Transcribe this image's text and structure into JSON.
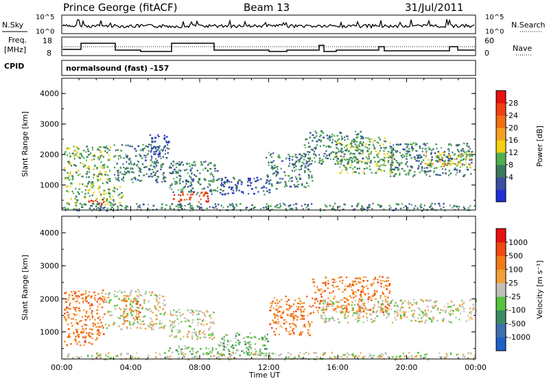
{
  "header": {
    "station": "Prince George (fitACF)",
    "beam": "Beam 13",
    "date": "31/Jul/2011"
  },
  "strip_labels": {
    "nsky": "N.Sky",
    "nsky_ticks": [
      "10^5",
      "10^0"
    ],
    "nsearch": "N.Search",
    "nsearch_ticks": [
      "10^5",
      "10^0"
    ],
    "freq_line1": "Freq.",
    "freq_line2": "[MHz]",
    "freq_ticks": [
      "18",
      "8"
    ],
    "nave": "Nave",
    "nave_ticks": [
      "60",
      "0"
    ],
    "cpid": "CPID",
    "cpid_value": "normalsound (fast) -157"
  },
  "colors": {
    "power_scale": [
      "#1f2fd6",
      "#3b4fa0",
      "#3c7a5c",
      "#4fae4f",
      "#f0d010",
      "#f5a020",
      "#f07010",
      "#f04010",
      "#e81010"
    ],
    "velocity_scale": [
      "#2060c8",
      "#3f6fb0",
      "#3c8a60",
      "#56c33c",
      "#c0c0bb",
      "#f1a038",
      "#f07a18",
      "#f04a10",
      "#e81010"
    ]
  },
  "chart_data": [
    {
      "type": "heatmap",
      "name": "power-panel",
      "ylabel": "Slant Range [km]",
      "ylim": [
        180,
        4500
      ],
      "yticks": [
        "1000",
        "2000",
        "3000",
        "4000"
      ],
      "xlabel": "",
      "xlim_hours": [
        0,
        24
      ],
      "xticks": [
        "00:00",
        "04:00",
        "08:00",
        "12:00",
        "16:00",
        "20:00",
        "00:00"
      ],
      "colorbar_label": "Power [dB]",
      "colorbar_ticks": [
        "28",
        "24",
        "20",
        "16",
        "12",
        "8",
        "4"
      ],
      "regions": [
        {
          "t0": 0.1,
          "t1": 2.8,
          "r0": 1050,
          "r1": 2300,
          "level": 3
        },
        {
          "t0": 3.0,
          "t1": 6.0,
          "r0": 1100,
          "r1": 2350,
          "level": 2
        },
        {
          "t0": 5.0,
          "t1": 6.2,
          "r0": 1900,
          "r1": 2700,
          "level": 1
        },
        {
          "t0": 0.2,
          "t1": 3.5,
          "r0": 350,
          "r1": 1000,
          "level": 3
        },
        {
          "t0": 1.3,
          "t1": 2.4,
          "r0": 350,
          "r1": 600,
          "level": 8
        },
        {
          "t0": 6.2,
          "t1": 9.0,
          "r0": 700,
          "r1": 1800,
          "level": 2
        },
        {
          "t0": 6.4,
          "t1": 8.5,
          "r0": 450,
          "r1": 800,
          "level": 7
        },
        {
          "t0": 9.0,
          "t1": 12.0,
          "r0": 700,
          "r1": 1300,
          "level": 1
        },
        {
          "t0": 11.8,
          "t1": 14.5,
          "r0": 900,
          "r1": 2100,
          "level": 2
        },
        {
          "t0": 14.0,
          "t1": 17.5,
          "r0": 1700,
          "r1": 2800,
          "level": 2
        },
        {
          "t0": 15.8,
          "t1": 19.2,
          "r0": 1400,
          "r1": 2600,
          "level": 3
        },
        {
          "t0": 19.0,
          "t1": 23.8,
          "r0": 1300,
          "r1": 2400,
          "level": 2
        },
        {
          "t0": 21.0,
          "t1": 23.8,
          "r0": 1600,
          "r1": 2100,
          "level": 4
        },
        {
          "t0": 0.0,
          "t1": 24.0,
          "r0": 180,
          "r1": 420,
          "level": 2
        }
      ]
    },
    {
      "type": "heatmap",
      "name": "velocity-panel",
      "ylabel": "Slant Range [km]",
      "ylim": [
        180,
        4500
      ],
      "yticks": [
        "1000",
        "2000",
        "3000",
        "4000"
      ],
      "xlabel": "Time UT",
      "xlim_hours": [
        0,
        24
      ],
      "xticks": [
        "00:00",
        "04:00",
        "08:00",
        "12:00",
        "16:00",
        "20:00",
        "00:00"
      ],
      "colorbar_label": "Velocity [m s⁻¹]",
      "colorbar_ticks": [
        "1000",
        "500",
        "100",
        "25",
        "-25",
        "-100",
        "-500",
        "-1000"
      ],
      "regions": [
        {
          "t0": 0.1,
          "t1": 2.5,
          "r0": 600,
          "r1": 2300,
          "level": 6
        },
        {
          "t0": 2.5,
          "t1": 6.0,
          "r0": 1100,
          "r1": 2300,
          "level": 4
        },
        {
          "t0": 3.5,
          "t1": 4.5,
          "r0": 1300,
          "r1": 2000,
          "level": 6
        },
        {
          "t0": 6.2,
          "t1": 8.8,
          "r0": 800,
          "r1": 1700,
          "level": 4
        },
        {
          "t0": 6.0,
          "t1": 9.0,
          "r0": 350,
          "r1": 600,
          "level": 3
        },
        {
          "t0": 9.0,
          "t1": 12.0,
          "r0": 300,
          "r1": 1000,
          "level": 3
        },
        {
          "t0": 12.0,
          "t1": 14.5,
          "r0": 900,
          "r1": 2100,
          "level": 6
        },
        {
          "t0": 14.5,
          "t1": 19.0,
          "r0": 1600,
          "r1": 2700,
          "level": 6
        },
        {
          "t0": 15.0,
          "t1": 24.0,
          "r0": 1300,
          "r1": 2000,
          "level": 4
        },
        {
          "t0": 0.0,
          "t1": 24.0,
          "r0": 180,
          "r1": 400,
          "level": 4
        }
      ]
    }
  ]
}
